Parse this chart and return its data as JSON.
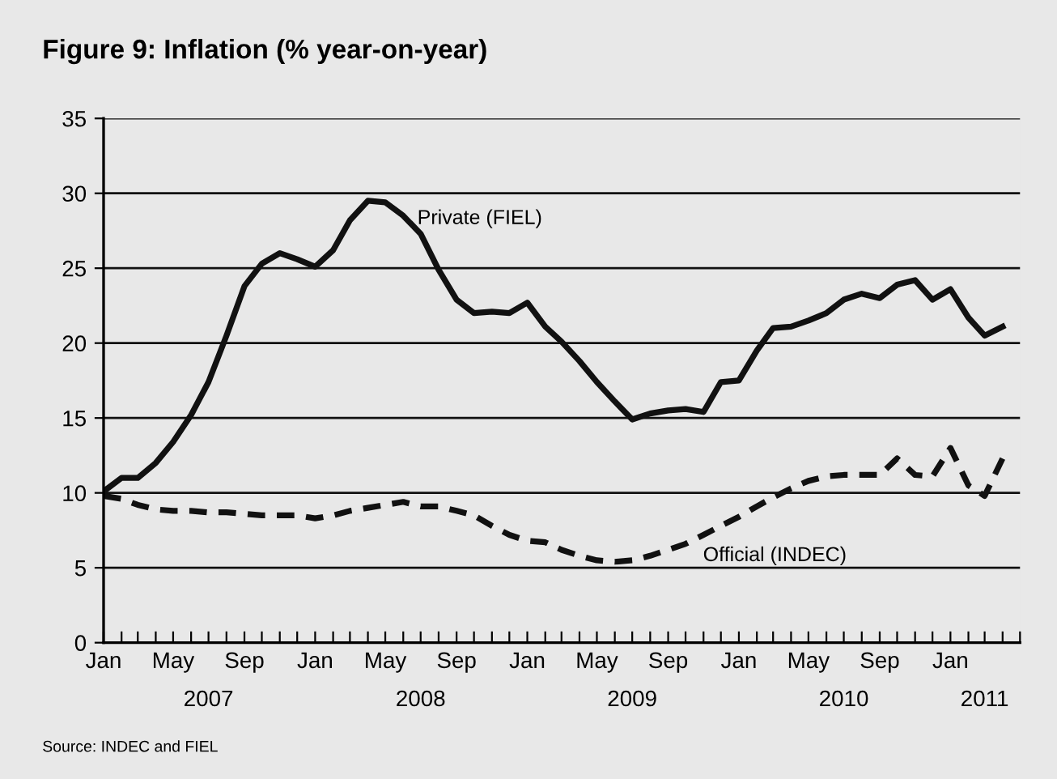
{
  "chart_data": {
    "type": "line",
    "title": "Figure 9: Inflation (% year-on-year)",
    "x": [
      "2007-01",
      "2007-02",
      "2007-03",
      "2007-04",
      "2007-05",
      "2007-06",
      "2007-07",
      "2007-08",
      "2007-09",
      "2007-10",
      "2007-11",
      "2007-12",
      "2008-01",
      "2008-02",
      "2008-03",
      "2008-04",
      "2008-05",
      "2008-06",
      "2008-07",
      "2008-08",
      "2008-09",
      "2008-10",
      "2008-11",
      "2008-12",
      "2009-01",
      "2009-02",
      "2009-03",
      "2009-04",
      "2009-05",
      "2009-06",
      "2009-07",
      "2009-08",
      "2009-09",
      "2009-10",
      "2009-11",
      "2009-12",
      "2010-01",
      "2010-02",
      "2010-03",
      "2010-04",
      "2010-05",
      "2010-06",
      "2010-07",
      "2010-08",
      "2010-09",
      "2010-10",
      "2010-11",
      "2010-12",
      "2011-01",
      "2011-02",
      "2011-03",
      "2011-04"
    ],
    "series": [
      {
        "name": "Private (FIEL)",
        "color": "#111111",
        "line_style": "solid",
        "values": [
          10.1,
          11,
          11,
          12,
          13.4,
          15.2,
          17.4,
          20.5,
          23.8,
          25.3,
          26.0,
          25.6,
          25.1,
          26.2,
          28.2,
          29.5,
          29.4,
          28.5,
          27.3,
          24.9,
          22.9,
          22.0,
          22.1,
          22.0,
          22.7,
          21.1,
          20.1,
          18.8,
          17.4,
          16.1,
          14.9,
          15.3,
          15.5,
          15.6,
          15.4,
          17.4,
          17.5,
          19.5,
          21.0,
          21.1,
          21.5,
          22.0,
          22.9,
          23.3,
          23.0,
          23.9,
          24.2,
          22.9,
          23.6,
          21.7,
          20.5,
          21.1
        ]
      },
      {
        "name": "Official (INDEC)",
        "color": "#111111",
        "line_style": "dashed",
        "values": [
          9.8,
          9.6,
          9.2,
          8.9,
          8.8,
          8.8,
          8.7,
          8.7,
          8.6,
          8.5,
          8.5,
          8.5,
          8.3,
          8.5,
          8.8,
          9.0,
          9.2,
          9.4,
          9.1,
          9.1,
          8.8,
          8.5,
          7.8,
          7.2,
          6.8,
          6.7,
          6.2,
          5.8,
          5.5,
          5.4,
          5.5,
          5.8,
          6.2,
          6.6,
          7.2,
          7.8,
          8.4,
          9.1,
          9.7,
          10.3,
          10.8,
          11.1,
          11.2,
          11.2,
          11.2,
          12.3,
          11.2,
          11.1,
          13.0,
          10.5,
          9.8,
          12.3
        ]
      }
    ],
    "xlim": [
      "2007-01",
      "2011-05"
    ],
    "xticks": [
      {
        "value": "2007-01",
        "label": "Jan"
      },
      {
        "value": "2007-02",
        "label": null
      },
      {
        "value": "2007-03",
        "label": null
      },
      {
        "value": "2007-04",
        "label": null
      },
      {
        "value": "2007-05",
        "label": "May"
      },
      {
        "value": "2007-06",
        "label": null
      },
      {
        "value": "2007-07",
        "label": null
      },
      {
        "value": "2007-08",
        "label": null
      },
      {
        "value": "2007-09",
        "label": "Sep"
      },
      {
        "value": "2007-10",
        "label": null
      },
      {
        "value": "2007-11",
        "label": null
      },
      {
        "value": "2007-12",
        "label": null
      },
      {
        "value": "2008-01",
        "label": "Jan"
      },
      {
        "value": "2008-02",
        "label": null
      },
      {
        "value": "2008-03",
        "label": null
      },
      {
        "value": "2008-04",
        "label": null
      },
      {
        "value": "2008-05",
        "label": "May"
      },
      {
        "value": "2008-06",
        "label": null
      },
      {
        "value": "2008-07",
        "label": null
      },
      {
        "value": "2008-08",
        "label": null
      },
      {
        "value": "2008-09",
        "label": "Sep"
      },
      {
        "value": "2008-10",
        "label": null
      },
      {
        "value": "2008-11",
        "label": null
      },
      {
        "value": "2008-12",
        "label": null
      },
      {
        "value": "2009-01",
        "label": "Jan"
      },
      {
        "value": "2009-02",
        "label": null
      },
      {
        "value": "2009-03",
        "label": null
      },
      {
        "value": "2009-04",
        "label": null
      },
      {
        "value": "2009-05",
        "label": "May"
      },
      {
        "value": "2009-06",
        "label": null
      },
      {
        "value": "2009-07",
        "label": null
      },
      {
        "value": "2009-08",
        "label": null
      },
      {
        "value": "2009-09",
        "label": "Sep"
      },
      {
        "value": "2009-10",
        "label": null
      },
      {
        "value": "2009-11",
        "label": null
      },
      {
        "value": "2009-12",
        "label": null
      },
      {
        "value": "2010-01",
        "label": "Jan"
      },
      {
        "value": "2010-02",
        "label": null
      },
      {
        "value": "2010-03",
        "label": null
      },
      {
        "value": "2010-04",
        "label": null
      },
      {
        "value": "2010-05",
        "label": "May"
      },
      {
        "value": "2010-06",
        "label": null
      },
      {
        "value": "2010-07",
        "label": null
      },
      {
        "value": "2010-08",
        "label": null
      },
      {
        "value": "2010-09",
        "label": "Sep"
      },
      {
        "value": "2010-10",
        "label": null
      },
      {
        "value": "2010-11",
        "label": null
      },
      {
        "value": "2010-12",
        "label": null
      },
      {
        "value": "2011-01",
        "label": "Jan"
      },
      {
        "value": "2011-02",
        "label": null
      },
      {
        "value": "2011-03",
        "label": null
      },
      {
        "value": "2011-04",
        "label": null
      },
      {
        "value": "2011-05",
        "label": null
      }
    ],
    "x2lim": [
      "2007-01",
      "2011-05"
    ],
    "x2ticks": [
      {
        "value": "2007-07",
        "label": "2007"
      },
      {
        "value": "2008-07",
        "label": "2008"
      },
      {
        "value": "2009-07",
        "label": "2009"
      },
      {
        "value": "2010-07",
        "label": "2010"
      },
      {
        "value": "2011-03",
        "label": "2011"
      }
    ],
    "ylim": [
      0,
      35
    ],
    "yticks": [
      0,
      5,
      10,
      15,
      20,
      25,
      30,
      35
    ],
    "grid": "y",
    "legend": false,
    "annotations": [
      "Source: INDEC and FIEL"
    ]
  }
}
